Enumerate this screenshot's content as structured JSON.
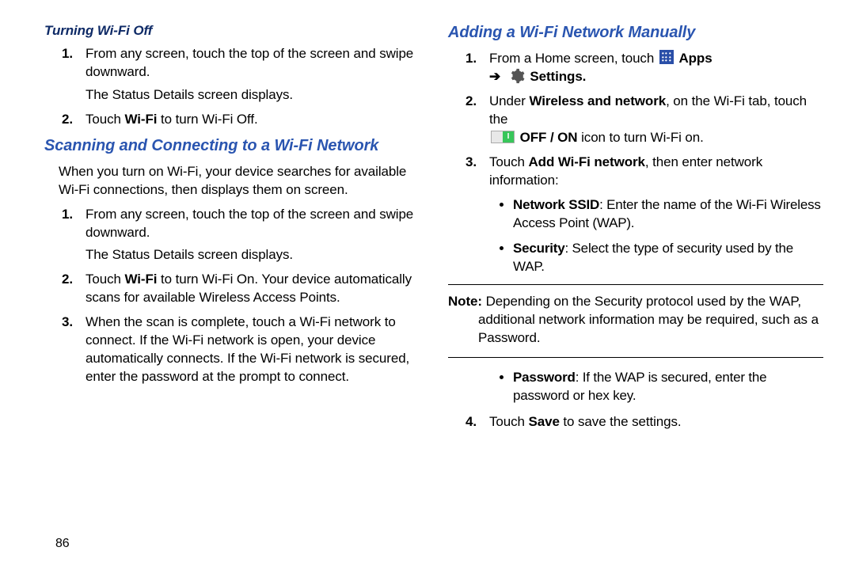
{
  "colors": {
    "heading_blue": "#2a55b0",
    "heading_dark": "#0e2a66",
    "body_text": "#000000",
    "background": "#ffffff",
    "apps_icon_bg": "#2a4fa8",
    "toggle_on": "#38c65a",
    "rule": "#000000"
  },
  "page_number": "86",
  "left": {
    "section1": {
      "title": "Turning Wi-Fi Off",
      "steps": [
        {
          "text": "From any screen, touch the top of the screen and swipe downward.",
          "followup": "The Status Details screen displays."
        },
        {
          "html": "Touch <b>Wi-Fi</b> to turn Wi-Fi Off."
        }
      ]
    },
    "section2": {
      "title": "Scanning and Connecting to a Wi-Fi Network",
      "intro": "When you turn on Wi-Fi, your device searches for available Wi-Fi connections, then displays them on screen.",
      "steps": [
        {
          "text": "From any screen, touch the top of the screen and swipe downward.",
          "followup": "The Status Details screen displays."
        },
        {
          "html": "Touch <b>Wi-Fi</b> to turn Wi-Fi On. Your device automatically scans for available Wireless Access Points."
        },
        {
          "text": "When the scan is complete, touch a Wi-Fi network to connect. If the Wi-Fi network is open, your device automatically connects. If the Wi-Fi network is secured, enter the password at the prompt to connect."
        }
      ]
    }
  },
  "right": {
    "section": {
      "title": "Adding a Wi-Fi Network Manually",
      "step1_prefix": "From a Home screen, touch ",
      "step1_apps": "Apps",
      "step1_arrow": "➔",
      "step1_settings": "Settings.",
      "step2_html": "Under <b>Wireless and network</b>, on the Wi-Fi tab, touch the",
      "step2_line2": " <b>OFF / ON</b> icon to turn Wi-Fi on.",
      "step3_html": "Touch <b>Add Wi-Fi network</b>, then enter network information:",
      "bullets_a": [
        "<b>Network SSID</b>: Enter the name of the Wi-Fi Wireless Access Point (WAP).",
        "<b>Security</b>: Select the type of security used by the WAP."
      ],
      "note_label": "Note:",
      "note_text": "Depending on the Security protocol used by the WAP, additional network information may be required, such as a Password.",
      "bullets_b": [
        "<b>Password</b>: If the WAP is secured, enter the password or hex key."
      ],
      "step4_html": "Touch <b>Save</b> to save the settings."
    }
  }
}
